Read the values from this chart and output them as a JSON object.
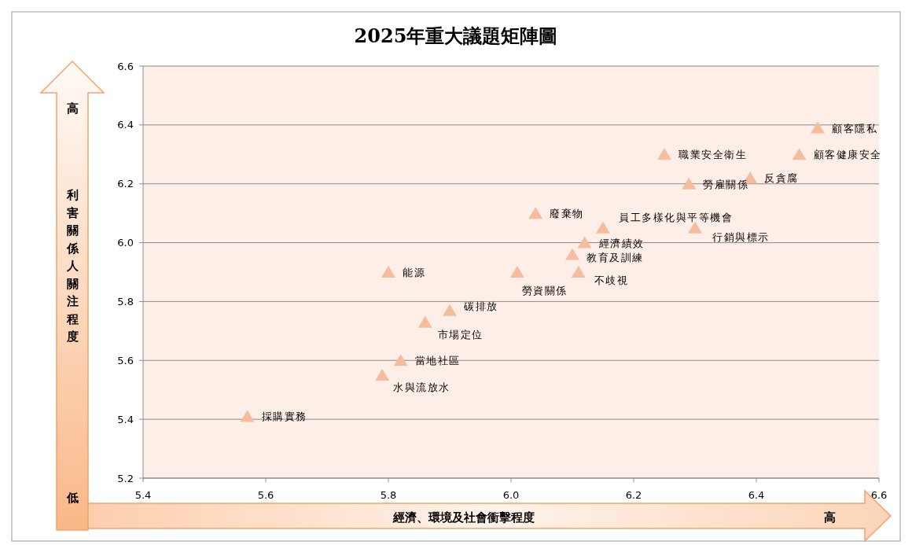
{
  "chart_data": {
    "type": "scatter",
    "title": "2025年重大議題矩陣圖",
    "xlabel": "經濟、環境及社會衝擊程度",
    "ylabel": "利害關係人關注程度",
    "x": [
      5.57,
      5.79,
      5.82,
      5.86,
      5.9,
      5.8,
      6.01,
      6.04,
      6.11,
      6.1,
      6.12,
      6.15,
      6.25,
      6.29,
      6.3,
      6.39,
      6.47,
      6.5
    ],
    "series": [
      {
        "color": "#f6bc9e",
        "values": [
          5.41,
          5.55,
          5.6,
          5.73,
          5.77,
          5.9,
          5.9,
          6.1,
          5.9,
          5.96,
          6.0,
          6.05,
          6.3,
          6.2,
          6.05,
          6.22,
          6.3,
          6.39
        ]
      }
    ],
    "marker": "triangle",
    "grid": "y",
    "xlim": [
      5.4,
      6.6
    ],
    "xticks": [
      5.4,
      5.6,
      5.8,
      {
        "value": 6,
        "label": "6.0"
      },
      6.2,
      6.4,
      6.6
    ],
    "ylim": [
      5.2,
      6.6
    ],
    "yticks": [
      5.2,
      5.4,
      5.6,
      5.8,
      {
        "value": 6,
        "label": "6.0"
      },
      6.2,
      6.4,
      6.6
    ],
    "annotations": [
      "高",
      "低",
      "高",
      {
        "text": "採購實務",
        "x": 5.57,
        "y": 5.41
      },
      {
        "text": "水與流放水",
        "x": 5.79,
        "y": 5.55
      },
      {
        "text": "當地社區",
        "x": 5.82,
        "y": 5.6
      },
      {
        "text": "市場定位",
        "x": 5.86,
        "y": 5.73
      },
      {
        "text": "碳排放",
        "x": 5.9,
        "y": 5.77
      },
      {
        "text": "能源",
        "x": 5.8,
        "y": 5.9
      },
      {
        "text": "勞資關係",
        "x": 6.01,
        "y": 5.9
      },
      {
        "text": "廢棄物",
        "x": 6.04,
        "y": 6.1
      },
      {
        "text": "不歧視",
        "x": 6.11,
        "y": 5.9
      },
      {
        "text": "教育及訓練",
        "x": 6.1,
        "y": 5.96
      },
      {
        "text": "經濟績效",
        "x": 6.12,
        "y": 6.0
      },
      {
        "text": "員工多樣化與平等機會",
        "x": 6.15,
        "y": 6.05
      },
      {
        "text": "職業安全衛生",
        "x": 6.25,
        "y": 6.3
      },
      {
        "text": "勞雇關係",
        "x": 6.29,
        "y": 6.2
      },
      {
        "text": "行銷與標示",
        "x": 6.3,
        "y": 6.05
      },
      {
        "text": "反貪腐",
        "x": 6.39,
        "y": 6.22
      },
      {
        "text": "顧客健康安全",
        "x": 6.47,
        "y": 6.3
      },
      {
        "text": "顧客隱私",
        "x": 6.5,
        "y": 6.39
      }
    ]
  }
}
